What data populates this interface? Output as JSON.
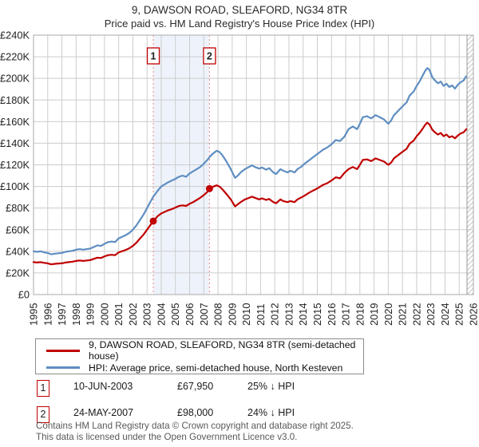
{
  "title": {
    "line1": "9, DAWSON ROAD, SLEAFORD, NG34 8TR",
    "line2": "Price paid vs. HM Land Registry's House Price Index (HPI)"
  },
  "colors": {
    "price_line": "#c00000",
    "hpi_line": "#5e8ec2",
    "grid": "#cccccc",
    "plot_border": "#a8a8a8",
    "marker_dashed_line": "#ee8888",
    "highlight_band": "#eef3fb",
    "hatch_stroke": "#c6c6c6",
    "cutoff_line": "#9a9a9a"
  },
  "chart_data": {
    "type": "line",
    "title": "Price paid vs. HM Land Registry's House Price Index (HPI)",
    "x_axis": {
      "min": 1995,
      "max": 2026,
      "tick_labels": [
        "1995",
        "1996",
        "1997",
        "1998",
        "1999",
        "2000",
        "2001",
        "2002",
        "2003",
        "2004",
        "2005",
        "2006",
        "2007",
        "2008",
        "2009",
        "2010",
        "2011",
        "2012",
        "2013",
        "2014",
        "2015",
        "2016",
        "2017",
        "2018",
        "2019",
        "2020",
        "2021",
        "2022",
        "2023",
        "2024",
        "2025",
        "2026"
      ]
    },
    "y_axis": {
      "min": 0,
      "max": 240,
      "unit": "GBP thousands",
      "grid": true,
      "tick_values": [
        0,
        20,
        40,
        60,
        80,
        100,
        120,
        140,
        160,
        180,
        200,
        220,
        240
      ],
      "tick_labels": [
        "£0",
        "£20K",
        "£40K",
        "£60K",
        "£80K",
        "£100K",
        "£120K",
        "£140K",
        "£160K",
        "£180K",
        "£200K",
        "£220K",
        "£240K"
      ]
    },
    "x": [
      1995.0,
      1995.25,
      1995.5,
      1995.75,
      1996.0,
      1996.25,
      1996.5,
      1996.75,
      1997.0,
      1997.25,
      1997.5,
      1997.75,
      1998.0,
      1998.25,
      1998.5,
      1998.75,
      1999.0,
      1999.25,
      1999.5,
      1999.75,
      2000.0,
      2000.25,
      2000.5,
      2000.75,
      2001.0,
      2001.25,
      2001.5,
      2001.75,
      2002.0,
      2002.25,
      2002.5,
      2002.75,
      2003.0,
      2003.25,
      2003.44,
      2003.75,
      2004.0,
      2004.25,
      2004.5,
      2004.75,
      2005.0,
      2005.25,
      2005.5,
      2005.75,
      2006.0,
      2006.25,
      2006.5,
      2006.75,
      2007.0,
      2007.25,
      2007.4,
      2007.6,
      2007.9,
      2008.1,
      2008.3,
      2008.6,
      2008.9,
      2009.2,
      2009.4,
      2009.6,
      2009.9,
      2010.1,
      2010.4,
      2010.6,
      2010.9,
      2011.1,
      2011.4,
      2011.6,
      2011.9,
      2012.1,
      2012.4,
      2012.6,
      2012.9,
      2013.1,
      2013.4,
      2013.6,
      2013.9,
      2014.1,
      2014.4,
      2014.6,
      2014.9,
      2015.1,
      2015.4,
      2015.7,
      2016.0,
      2016.3,
      2016.6,
      2016.9,
      2017.2,
      2017.5,
      2017.8,
      2018.0,
      2018.2,
      2018.5,
      2018.8,
      2019.1,
      2019.4,
      2019.7,
      2020.0,
      2020.2,
      2020.4,
      2020.7,
      2021.0,
      2021.3,
      2021.5,
      2021.8,
      2022.0,
      2022.2,
      2022.4,
      2022.6,
      2022.75,
      2022.9,
      2023.1,
      2023.3,
      2023.5,
      2023.7,
      2023.9,
      2024.1,
      2024.3,
      2024.5,
      2024.7,
      2024.9,
      2025.1,
      2025.3,
      2025.5
    ],
    "series": [
      {
        "name": "9, DAWSON ROAD, SLEAFORD, NG34 8TR (semi-detached house)",
        "color": "#c00000",
        "values": [
          30,
          29.6,
          30,
          29.3,
          28.9,
          27.9,
          28.4,
          28.7,
          28.9,
          29.6,
          30,
          30.4,
          31.1,
          31.5,
          31.1,
          31.5,
          31.9,
          33,
          34.1,
          33.8,
          35.3,
          36.4,
          36.8,
          36.4,
          39,
          40.1,
          41.3,
          42.8,
          45,
          48,
          51.8,
          55.5,
          60,
          64.5,
          67.95,
          72.5,
          75,
          76.5,
          78,
          79,
          80.5,
          82,
          82.5,
          82,
          84,
          85.5,
          87.5,
          89.5,
          92,
          95,
          98,
          99.5,
          101,
          100,
          97.5,
          93,
          88,
          81.5,
          83.5,
          85.5,
          88,
          89,
          90.5,
          89.5,
          88,
          89,
          87.5,
          88.5,
          85.5,
          84.5,
          88,
          86.5,
          85.5,
          86.5,
          85.5,
          88,
          90,
          91.5,
          94,
          95.5,
          97.5,
          99,
          101.5,
          103,
          105.5,
          108.5,
          107.5,
          112.5,
          116,
          118,
          116,
          120,
          124.5,
          125,
          123.5,
          126,
          124.5,
          123,
          120,
          122,
          126,
          129,
          132,
          135,
          139.5,
          142.5,
          146.5,
          149.5,
          153,
          157,
          159,
          157.5,
          152.5,
          150,
          148,
          149.5,
          146.5,
          148,
          145.5,
          146.5,
          144.5,
          147,
          149,
          150,
          153
        ]
      },
      {
        "name": "HPI: Average price, semi-detached house, North Kesteven",
        "color": "#5e8ec2",
        "values": [
          40,
          39.5,
          40,
          39,
          38.5,
          37.2,
          37.8,
          38.2,
          38.5,
          39.5,
          40,
          40.5,
          41.5,
          42,
          41.5,
          42,
          42.5,
          44,
          45.5,
          45,
          47,
          48.5,
          49,
          48.5,
          52,
          53.5,
          55,
          57,
          60,
          64,
          69,
          74,
          80,
          86,
          90.5,
          96,
          100,
          102,
          104,
          105.5,
          107,
          109,
          110,
          109,
          112,
          114,
          116,
          118,
          121,
          124.5,
          127,
          130,
          133,
          132,
          129,
          123,
          116,
          108,
          110,
          113,
          116,
          117.5,
          119.5,
          118,
          116.5,
          117.5,
          115.5,
          117,
          113,
          111.5,
          116,
          114.5,
          113,
          114.5,
          113,
          116,
          118.5,
          121,
          124,
          126,
          129,
          131,
          134,
          136,
          139,
          143,
          142,
          146,
          153,
          155.5,
          153,
          158,
          164,
          165,
          163,
          166,
          164,
          162,
          158,
          161,
          166,
          170,
          174,
          178,
          184,
          188,
          193,
          197,
          202,
          207,
          209.5,
          208,
          201,
          198,
          195.5,
          197,
          193,
          195,
          192,
          193.5,
          190.5,
          194,
          196.5,
          198,
          202
        ]
      }
    ],
    "highlight_band": {
      "from": 2003.44,
      "to": 2007.4
    },
    "future_hatch_from": 2025.55,
    "sale_points": [
      {
        "marker": "1",
        "x": 2003.44,
        "value": 67.95
      },
      {
        "marker": "2",
        "x": 2007.4,
        "value": 98
      }
    ]
  },
  "annotations": [
    {
      "label": "1",
      "x": 2003.44
    },
    {
      "label": "2",
      "x": 2007.4
    }
  ],
  "legend": {
    "items": [
      {
        "label": "9, DAWSON ROAD, SLEAFORD, NG34 8TR (semi-detached house)",
        "color": "#c00000"
      },
      {
        "label": "HPI: Average price, semi-detached house, North Kesteven",
        "color": "#5e8ec2"
      }
    ]
  },
  "sales_table": {
    "rows": [
      {
        "marker": "1",
        "date": "10-JUN-2003",
        "price": "£67,950",
        "hpi_note": "25% ↓ HPI"
      },
      {
        "marker": "2",
        "date": "24-MAY-2007",
        "price": "£98,000",
        "hpi_note": "24% ↓ HPI"
      }
    ]
  },
  "footer": {
    "line1": "Contains HM Land Registry data © Crown copyright and database right 2025.",
    "line2": "This data is licensed under the Open Government Licence v3.0."
  }
}
